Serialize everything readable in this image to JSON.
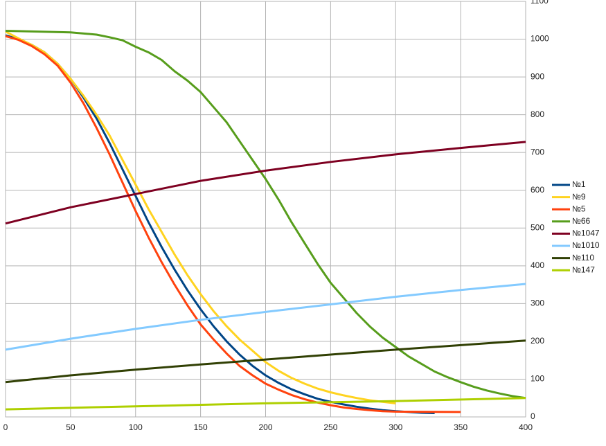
{
  "chart_data": {
    "type": "line",
    "xlim": [
      0,
      400
    ],
    "xticks": [
      0,
      50,
      100,
      150,
      200,
      250,
      300,
      350,
      400
    ],
    "ylim": [
      0,
      1100
    ],
    "yticks": [
      0,
      100,
      200,
      300,
      400,
      500,
      600,
      700,
      800,
      900,
      1000,
      1100
    ],
    "grid": true,
    "legend": "right",
    "series": [
      {
        "name": "№1",
        "color": "#004586",
        "x": [
          0,
          10,
          20,
          30,
          40,
          50,
          60,
          70,
          80,
          90,
          100,
          110,
          120,
          130,
          140,
          150,
          160,
          170,
          180,
          190,
          200,
          210,
          220,
          230,
          240,
          250,
          260,
          270,
          280,
          290,
          300,
          310,
          320,
          330
        ],
        "values": [
          1010,
          1000,
          985,
          965,
          935,
          895,
          845,
          790,
          725,
          655,
          585,
          515,
          450,
          390,
          335,
          285,
          240,
          200,
          165,
          135,
          110,
          90,
          73,
          60,
          48,
          40,
          33,
          27,
          22,
          18,
          15,
          13,
          11,
          10
        ]
      },
      {
        "name": "№9",
        "color": "#ffd320",
        "x": [
          0,
          10,
          20,
          30,
          40,
          50,
          60,
          70,
          80,
          90,
          100,
          110,
          120,
          130,
          140,
          150,
          160,
          170,
          180,
          190,
          200,
          210,
          220,
          230,
          240,
          250,
          260,
          270,
          280,
          290,
          300
        ],
        "values": [
          1020,
          1002,
          985,
          965,
          935,
          895,
          850,
          800,
          745,
          680,
          615,
          550,
          490,
          430,
          375,
          325,
          280,
          240,
          205,
          175,
          145,
          122,
          103,
          88,
          75,
          65,
          57,
          50,
          44,
          40,
          36
        ]
      },
      {
        "name": "№5",
        "color": "#ff420e",
        "x": [
          0,
          10,
          20,
          30,
          40,
          50,
          60,
          70,
          80,
          90,
          100,
          110,
          120,
          130,
          140,
          150,
          160,
          170,
          180,
          190,
          200,
          210,
          220,
          230,
          240,
          250,
          260,
          270,
          280,
          290,
          300,
          350
        ],
        "values": [
          1008,
          998,
          982,
          960,
          930,
          885,
          830,
          765,
          695,
          620,
          545,
          475,
          410,
          350,
          295,
          245,
          205,
          168,
          135,
          110,
          88,
          72,
          58,
          47,
          38,
          31,
          25,
          21,
          18,
          15,
          14,
          13
        ]
      },
      {
        "name": "№66",
        "color": "#579d1c",
        "x": [
          0,
          50,
          70,
          80,
          90,
          100,
          110,
          120,
          130,
          140,
          150,
          160,
          170,
          180,
          190,
          200,
          210,
          220,
          230,
          240,
          250,
          260,
          270,
          280,
          290,
          300,
          310,
          320,
          330,
          340,
          350,
          360,
          370,
          380,
          390,
          400
        ],
        "values": [
          1022,
          1018,
          1012,
          1005,
          997,
          980,
          965,
          945,
          915,
          890,
          860,
          820,
          780,
          730,
          680,
          630,
          575,
          515,
          460,
          405,
          355,
          315,
          275,
          240,
          210,
          185,
          160,
          140,
          120,
          105,
          92,
          80,
          70,
          62,
          55,
          50
        ]
      },
      {
        "name": "№1047",
        "color": "#7e0021",
        "x": [
          0,
          50,
          100,
          150,
          200,
          250,
          300,
          350,
          400
        ],
        "values": [
          512,
          555,
          590,
          625,
          652,
          675,
          695,
          712,
          728
        ]
      },
      {
        "name": "№1010",
        "color": "#83caff",
        "x": [
          0,
          50,
          100,
          150,
          200,
          250,
          300,
          350,
          400
        ],
        "values": [
          178,
          207,
          233,
          257,
          278,
          298,
          318,
          336,
          352
        ]
      },
      {
        "name": "№110",
        "color": "#314004",
        "x": [
          0,
          50,
          100,
          150,
          200,
          250,
          300,
          350,
          400
        ],
        "values": [
          92,
          110,
          125,
          139,
          152,
          165,
          178,
          190,
          202
        ]
      },
      {
        "name": "№147",
        "color": "#aecf00",
        "x": [
          0,
          100,
          200,
          300,
          400
        ],
        "values": [
          20,
          28,
          36,
          42,
          50
        ]
      }
    ]
  }
}
